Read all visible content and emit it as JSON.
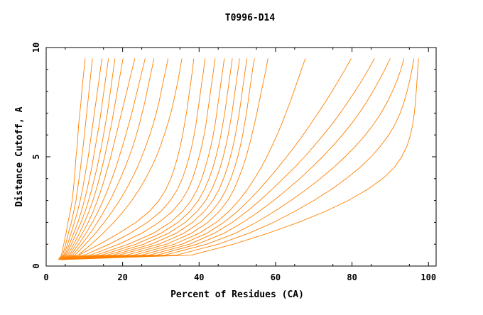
{
  "chart_data": {
    "type": "line",
    "title": "T0996-D14",
    "xlabel": "Percent of Residues (CA)",
    "ylabel": "Distance Cutoff, A",
    "xlim": [
      0,
      102
    ],
    "ylim": [
      0,
      10
    ],
    "x_ticks": [
      0,
      20,
      40,
      60,
      80,
      100
    ],
    "y_ticks": [
      0,
      5,
      10
    ],
    "grid": false,
    "line_color": "#ff8000",
    "y_levels": [
      0.3,
      0.5,
      1,
      1.5,
      2,
      2.5,
      3,
      3.5,
      4,
      4.5,
      5,
      5.5,
      6,
      6.5,
      7,
      7.5,
      8,
      8.5,
      9,
      9.5
    ],
    "series": [
      {
        "x": [
          3.2,
          4,
          4.6,
          5.2,
          5.7,
          6.3,
          6.8,
          7.1,
          7.4,
          7.6,
          7.8,
          8.1,
          8.3,
          8.5,
          8.8,
          9.1,
          9.3,
          9.6,
          9.9,
          10.2
        ]
      },
      {
        "x": [
          3.4,
          4.3,
          5.1,
          5.8,
          6.6,
          7.2,
          7.8,
          8.2,
          8.6,
          9,
          9.3,
          9.7,
          10,
          10.3,
          10.6,
          10.9,
          11.2,
          11.5,
          11.8,
          12.1
        ]
      },
      {
        "x": [
          3.5,
          4.6,
          5.6,
          6.5,
          7.4,
          8.2,
          8.9,
          9.5,
          10,
          10.5,
          11,
          11.4,
          11.8,
          12.2,
          12.6,
          13,
          13.4,
          13.8,
          14.2,
          14.6
        ]
      },
      {
        "x": [
          3.6,
          4.9,
          6.1,
          7.2,
          8.3,
          9.2,
          10,
          10.7,
          11.3,
          11.9,
          12.4,
          12.9,
          13.4,
          13.9,
          14.3,
          14.7,
          15.1,
          15.5,
          15.9,
          16.3
        ]
      },
      {
        "x": [
          3.8,
          5.2,
          6.6,
          7.9,
          9.1,
          10.2,
          11.1,
          11.9,
          12.6,
          13.3,
          13.9,
          14.5,
          15,
          15.5,
          16,
          16.4,
          16.8,
          17.2,
          17.6,
          18
        ]
      },
      {
        "x": [
          4,
          5.6,
          7.2,
          8.7,
          10,
          11.2,
          12.2,
          13.1,
          13.9,
          14.6,
          15.3,
          15.9,
          16.5,
          17.1,
          17.6,
          18.1,
          18.6,
          19.1,
          19.6,
          20.1
        ]
      },
      {
        "x": [
          4.1,
          6,
          7.8,
          9.5,
          11,
          12.3,
          13.4,
          14.4,
          15.3,
          16.1,
          16.9,
          17.6,
          18.3,
          19,
          19.7,
          20.4,
          21.1,
          21.8,
          22.5,
          23.2
        ]
      },
      {
        "x": [
          4.3,
          6.4,
          8.5,
          10.4,
          12.1,
          13.6,
          14.9,
          16.1,
          17.2,
          18.2,
          19.1,
          20,
          20.8,
          21.6,
          22.4,
          23.1,
          23.8,
          24.5,
          25.2,
          25.9
        ]
      },
      {
        "x": [
          4.4,
          6.9,
          9.3,
          11.5,
          13.4,
          15.1,
          16.7,
          18.1,
          19.4,
          20.6,
          21.7,
          22.7,
          23.6,
          24.4,
          25.1,
          25.8,
          26.4,
          27,
          27.6,
          28.2
        ]
      },
      {
        "x": [
          4.6,
          7.5,
          10.3,
          12.9,
          15.2,
          17.3,
          19.2,
          20.9,
          22.4,
          23.8,
          25,
          26.1,
          27.1,
          28,
          28.8,
          29.5,
          30.1,
          30.7,
          31.3,
          31.9
        ]
      },
      {
        "x": [
          4.8,
          8.4,
          11.8,
          14.9,
          17.7,
          20.2,
          22.4,
          24.3,
          26,
          27.5,
          28.8,
          29.9,
          30.9,
          31.8,
          32.6,
          33.3,
          33.9,
          34.5,
          35,
          35.5
        ]
      },
      {
        "x": [
          3.3,
          8.5,
          14,
          19,
          23.5,
          27,
          29.5,
          31.3,
          32.6,
          33.6,
          34.4,
          35.1,
          35.7,
          36.2,
          36.7,
          37.1,
          37.5,
          37.9,
          38.3,
          38.6
        ]
      },
      {
        "x": [
          3.4,
          10,
          16.5,
          22,
          26.5,
          30,
          32.5,
          34.3,
          35.6,
          36.6,
          37.4,
          38.1,
          38.7,
          39.2,
          39.6,
          40,
          40.4,
          40.8,
          41.2,
          41.5
        ]
      },
      {
        "x": [
          3.5,
          11.5,
          19,
          25,
          29.5,
          33,
          35.4,
          37.1,
          38.3,
          39.2,
          40,
          40.7,
          41.3,
          41.8,
          42.2,
          42.6,
          43,
          43.4,
          43.8,
          44.2
        ]
      },
      {
        "x": [
          3.6,
          13,
          21.5,
          28,
          32.5,
          35.7,
          37.9,
          39.5,
          40.7,
          41.6,
          42.4,
          43.1,
          43.7,
          44.2,
          44.6,
          45,
          45.4,
          45.8,
          46.2,
          46.6
        ]
      },
      {
        "x": [
          3.7,
          14.5,
          23.5,
          30,
          34.5,
          37.6,
          39.8,
          41.4,
          42.6,
          43.6,
          44.4,
          45.1,
          45.7,
          46.2,
          46.7,
          47.1,
          47.5,
          47.9,
          48.3,
          48.7
        ]
      },
      {
        "x": [
          3.8,
          16,
          25.5,
          32,
          36.4,
          39.5,
          41.7,
          43.3,
          44.5,
          45.5,
          46.3,
          47,
          47.6,
          48.1,
          48.6,
          49,
          49.4,
          49.8,
          50.2,
          50.6
        ]
      },
      {
        "x": [
          3.9,
          17.5,
          27.5,
          34,
          38.3,
          41.4,
          43.6,
          45.2,
          46.4,
          47.4,
          48.2,
          48.9,
          49.5,
          50,
          50.5,
          50.9,
          51.3,
          51.7,
          52.1,
          52.5
        ]
      },
      {
        "x": [
          4,
          19,
          29.5,
          36,
          40.3,
          43.3,
          45.5,
          47.1,
          48.3,
          49.3,
          50.1,
          50.8,
          51.4,
          51.9,
          52.4,
          52.8,
          53.2,
          53.6,
          54,
          54.5
        ]
      },
      {
        "x": [
          4.1,
          21,
          31.5,
          38,
          42.3,
          45.3,
          47.5,
          49.1,
          50.3,
          51.4,
          52.3,
          53.1,
          53.8,
          54.5,
          55.1,
          55.7,
          56.3,
          56.9,
          57.5,
          58
        ]
      },
      {
        "x": [
          4.2,
          23,
          33.5,
          40,
          44.5,
          47.8,
          50.4,
          52.6,
          54.5,
          56.2,
          57.7,
          59.1,
          60.4,
          61.6,
          62.7,
          63.8,
          64.8,
          65.8,
          66.8,
          67.8
        ]
      },
      {
        "x": [
          4.3,
          25,
          35.5,
          42,
          46.5,
          50,
          53,
          55.7,
          58.2,
          60.6,
          62.9,
          65.1,
          67.2,
          69.2,
          71.1,
          73,
          74.8,
          76.5,
          78.2,
          79.8
        ]
      },
      {
        "x": [
          4.4,
          27,
          37.5,
          44,
          48.7,
          52.5,
          55.9,
          59,
          62,
          64.9,
          67.6,
          70.1,
          72.5,
          74.8,
          76.9,
          78.9,
          80.8,
          82.6,
          84.3,
          85.9
        ]
      },
      {
        "x": [
          4.5,
          29,
          39.5,
          46.5,
          51.5,
          55.7,
          59.5,
          63,
          66.3,
          69.4,
          72.3,
          75,
          77.5,
          79.8,
          81.9,
          83.8,
          85.5,
          87.1,
          88.6,
          90
        ]
      },
      {
        "x": [
          4.6,
          31,
          42,
          49.5,
          55,
          59.7,
          64,
          68,
          71.7,
          75.1,
          78.2,
          81,
          83.5,
          85.7,
          87.6,
          89.2,
          90.6,
          91.8,
          92.8,
          93.6
        ]
      },
      {
        "x": [
          4.7,
          34,
          45,
          53,
          59.5,
          65,
          70,
          74.5,
          78.5,
          82,
          85,
          87.5,
          89.6,
          91.3,
          92.6,
          93.6,
          94.4,
          95.1,
          95.7,
          96.2
        ]
      },
      {
        "x": [
          4.8,
          38,
          49,
          58,
          66,
          73,
          79,
          84,
          88,
          91,
          93,
          94.4,
          95.3,
          95.9,
          96.3,
          96.6,
          96.8,
          97,
          97.2,
          97.4
        ]
      }
    ]
  }
}
